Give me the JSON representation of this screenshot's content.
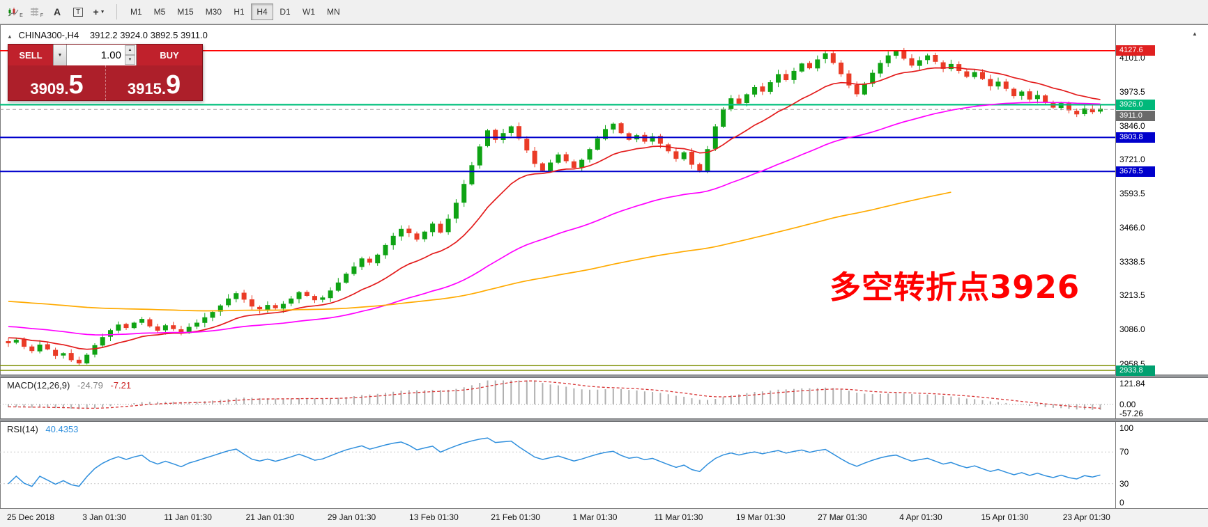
{
  "toolbar": {
    "icons": [
      {
        "name": "chart-mode-icon",
        "sub": "E"
      },
      {
        "name": "grid-icon",
        "sub": "F"
      },
      {
        "name": "text-a-icon",
        "glyph": "A"
      },
      {
        "name": "label-icon",
        "glyph": "T"
      },
      {
        "name": "crosshair-icon",
        "glyph": "+"
      }
    ],
    "timeframes": [
      {
        "label": "M1"
      },
      {
        "label": "M5"
      },
      {
        "label": "M15"
      },
      {
        "label": "M30"
      },
      {
        "label": "H1"
      },
      {
        "label": "H4",
        "active": true
      },
      {
        "label": "D1"
      },
      {
        "label": "W1"
      },
      {
        "label": "MN"
      }
    ]
  },
  "chart": {
    "title": "CHINA300-,H4",
    "ohlc": "3912.2 3924.0 3892.5 3911.0",
    "annotation": "多空转折点3926",
    "annotation_color": "#ff0000",
    "expand_marker": "▲"
  },
  "trade_widget": {
    "sell_label": "SELL",
    "buy_label": "BUY",
    "volume": "1.00",
    "bid_small": "3909.",
    "bid_big": "5",
    "ask_small": "3915.",
    "ask_big": "9"
  },
  "price_axis": {
    "ticks": [
      {
        "label": "4101.0",
        "value": 4101.0
      },
      {
        "label": "3973.5",
        "value": 3973.5
      },
      {
        "label": "3846.0",
        "value": 3846.0
      },
      {
        "label": "3721.0",
        "value": 3721.0
      },
      {
        "label": "3593.5",
        "value": 3593.5
      },
      {
        "label": "3466.0",
        "value": 3466.0
      },
      {
        "label": "3338.5",
        "value": 3338.5
      },
      {
        "label": "3213.5",
        "value": 3213.5
      },
      {
        "label": "3086.0",
        "value": 3086.0
      },
      {
        "label": "2958.5",
        "value": 2958.5
      }
    ],
    "badges": [
      {
        "label": "4127.6",
        "bg": "#e02020",
        "anchor": 4127.6
      },
      {
        "label": "3926.0",
        "bg": "#00b87a",
        "anchor": 3926.0
      },
      {
        "label": "3911.0",
        "bg": "#6a6a6a",
        "anchor": 3884.0
      },
      {
        "label": "3803.8",
        "bg": "#0000cc",
        "anchor": 3803.8
      },
      {
        "label": "3676.5",
        "bg": "#0000cc",
        "anchor": 3676.5
      },
      {
        "label": "2933.8",
        "bg": "#00a070",
        "anchor": 2933.8
      }
    ]
  },
  "hlines": [
    {
      "price": 4127.6,
      "color": "#ff0000",
      "w": 1.6
    },
    {
      "price": 3926.0,
      "color": "#00c07c",
      "w": 2.2
    },
    {
      "price": 3908.0,
      "color": "#9a9a9a",
      "w": 1,
      "dash": "5,4"
    },
    {
      "price": 3803.8,
      "color": "#0000cc",
      "w": 2
    },
    {
      "price": 3676.5,
      "color": "#0000cc",
      "w": 2
    },
    {
      "price": 2952.0,
      "color": "#7d8f00",
      "w": 1.5
    },
    {
      "price": 2933.8,
      "color": "#7d8f00",
      "w": 1.5
    }
  ],
  "macd_panel": {
    "label": "MACD(12,26,9)",
    "main_value": "-24.79",
    "signal_value": "-7.21",
    "axis": [
      {
        "label": "121.84",
        "value": 121.84
      },
      {
        "label": "0.00",
        "value": 0
      },
      {
        "label": "-57.26",
        "value": -57.26
      }
    ]
  },
  "rsi_panel": {
    "label": "RSI(14)",
    "value": "40.4353",
    "levels": [
      70,
      30
    ],
    "axis": [
      {
        "label": "100",
        "value": 100
      },
      {
        "label": "70",
        "value": 70
      },
      {
        "label": "30",
        "value": 30
      },
      {
        "label": "0",
        "value": 0
      }
    ]
  },
  "chart_data": {
    "type": "candlestick",
    "symbol": "CHINA300-",
    "timeframe": "H4",
    "last_ohlc": {
      "open": 3912.2,
      "high": 3924.0,
      "low": 3892.5,
      "close": 3911.0
    },
    "price_range": [
      2913,
      4213
    ],
    "closes": [
      3035,
      3048,
      3022,
      3006,
      3030,
      3012,
      2988,
      2998,
      2972,
      2960,
      2992,
      3028,
      3058,
      3084,
      3105,
      3092,
      3112,
      3126,
      3098,
      3082,
      3102,
      3088,
      3072,
      3096,
      3112,
      3132,
      3152,
      3176,
      3202,
      3222,
      3198,
      3172,
      3162,
      3178,
      3166,
      3182,
      3202,
      3226,
      3212,
      3196,
      3206,
      3232,
      3262,
      3295,
      3322,
      3352,
      3336,
      3366,
      3402,
      3436,
      3462,
      3446,
      3422,
      3452,
      3482,
      3448,
      3500,
      3560,
      3630,
      3700,
      3770,
      3830,
      3795,
      3820,
      3845,
      3800,
      3755,
      3705,
      3680,
      3710,
      3740,
      3715,
      3690,
      3720,
      3760,
      3800,
      3835,
      3855,
      3820,
      3795,
      3812,
      3788,
      3808,
      3780,
      3752,
      3724,
      3748,
      3702,
      3680,
      3760,
      3845,
      3910,
      3950,
      3930,
      3965,
      3992,
      3975,
      4010,
      4040,
      4018,
      4052,
      4080,
      4062,
      4095,
      4118,
      4082,
      4040,
      3998,
      3965,
      4005,
      4045,
      4082,
      4110,
      4126,
      4098,
      4072,
      4092,
      4110,
      4086,
      4060,
      4078,
      4052,
      4030,
      4048,
      4022,
      3995,
      4012,
      3985,
      3958,
      3975,
      3945,
      3962,
      3935,
      3915,
      3932,
      3905,
      3890,
      3912,
      3898,
      3911
    ],
    "extremes": {
      "low_index": 9,
      "low": 2952.0,
      "high_index": 113,
      "high": 4127.6
    },
    "pre_window": {
      "bars": 200,
      "start": 3450,
      "end": 3045
    },
    "ma": [
      {
        "name": "fast-ma",
        "period": 16,
        "color": "#e31b1b"
      },
      {
        "name": "mid-ma",
        "period": 55,
        "color": "#ff00ff"
      },
      {
        "name": "slow-ma",
        "period": 160,
        "color": "#ffaa00",
        "end_index": 120
      }
    ],
    "macd": {
      "fast": 12,
      "slow": 26,
      "signal": 9
    },
    "rsi": {
      "period": 14
    },
    "colors": {
      "up": "#0fa314",
      "down": "#ea3b26",
      "macd_hist": "#b0b0b0",
      "macd_signal": "#d83434",
      "rsi": "#2f8fdd"
    },
    "x_labels": [
      {
        "label": "25 Dec 2018",
        "i": 0
      },
      {
        "label": "3 Jan 01:30",
        "i": 9.6
      },
      {
        "label": "11 Jan 01:30",
        "i": 20
      },
      {
        "label": "21 Jan 01:30",
        "i": 30.4
      },
      {
        "label": "29 Jan 01:30",
        "i": 40.8
      },
      {
        "label": "13 Feb 01:30",
        "i": 51.2
      },
      {
        "label": "21 Feb 01:30",
        "i": 61.6
      },
      {
        "label": "1 Mar 01:30",
        "i": 72
      },
      {
        "label": "11 Mar 01:30",
        "i": 82.4
      },
      {
        "label": "19 Mar 01:30",
        "i": 92.8
      },
      {
        "label": "27 Mar 01:30",
        "i": 103.2
      },
      {
        "label": "4 Apr 01:30",
        "i": 113.6
      },
      {
        "label": "15 Apr 01:30",
        "i": 124
      },
      {
        "label": "23 Apr 01:30",
        "i": 134.4
      }
    ]
  }
}
